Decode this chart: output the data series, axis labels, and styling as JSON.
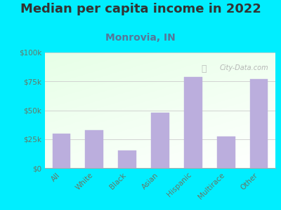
{
  "title": "Median per capita income in 2022",
  "subtitle": "Monrovia, IN",
  "categories": [
    "All",
    "White",
    "Black",
    "Asian",
    "Hispanic",
    "Multirace",
    "Other"
  ],
  "values": [
    30000,
    33000,
    15000,
    48000,
    79000,
    27000,
    77000
  ],
  "bar_color": "#bbaedd",
  "bar_edge_color": "#bbaedd",
  "bg_color": "#00eeff",
  "title_color": "#333333",
  "subtitle_color": "#557799",
  "tick_label_color": "#667766",
  "grid_color": "#cccccc",
  "ylim": [
    0,
    100000
  ],
  "yticks": [
    0,
    25000,
    50000,
    75000,
    100000
  ],
  "ytick_labels": [
    "$0",
    "$25k",
    "$50k",
    "$75k",
    "$100k"
  ],
  "watermark": "City-Data.com",
  "title_fontsize": 13,
  "subtitle_fontsize": 10,
  "tick_fontsize": 7.5,
  "figsize": [
    4.0,
    3.0
  ],
  "dpi": 100
}
